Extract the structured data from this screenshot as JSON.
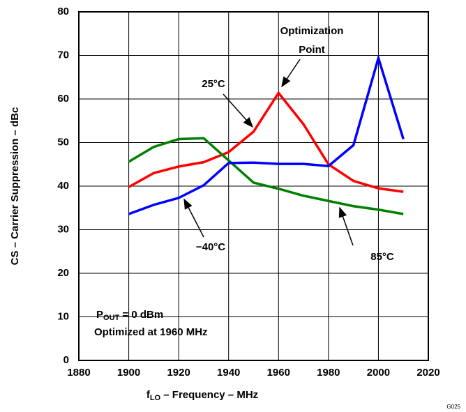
{
  "chart_data": {
    "type": "line",
    "xlabel": {
      "main": "f",
      "sub": "LO",
      "rest": " – Frequency – MHz"
    },
    "ylabel": "CS – Carrier Suppression – dBc",
    "x": [
      1900,
      1910,
      1920,
      1930,
      1940,
      1950,
      1960,
      1970,
      1980,
      1990,
      2000,
      2010
    ],
    "series": [
      {
        "name": "25°C",
        "color": "#ff0000",
        "values": [
          39.8,
          43,
          44.5,
          45.5,
          47.8,
          52.5,
          61.4,
          54.2,
          45,
          41.2,
          39.5,
          38.7
        ]
      },
      {
        "name": "85°C",
        "color": "#008000",
        "values": [
          45.6,
          49,
          50.8,
          51,
          45.9,
          40.8,
          39.4,
          37.8,
          36.6,
          35.4,
          34.6,
          33.6
        ]
      },
      {
        "name": "−40°C",
        "color": "#0000ff",
        "values": [
          33.6,
          35.7,
          37.3,
          40.2,
          45.3,
          45.4,
          45.1,
          45.1,
          44.6,
          49.4,
          69.4,
          50.8
        ]
      }
    ],
    "xlim": [
      1880,
      2020
    ],
    "xticks": [
      1880,
      1900,
      1920,
      1940,
      1960,
      1980,
      2000,
      2020
    ],
    "ylim": [
      0,
      80
    ],
    "yticks": [
      0,
      10,
      20,
      30,
      40,
      50,
      60,
      70,
      80
    ],
    "grid": true,
    "annotations": {
      "opt1": "Optimization",
      "opt2": "Point",
      "note_main": "P",
      "note_sub": "OUT",
      "note_rest": " = 0 dBm",
      "note2": "Optimized at 1960 MHz"
    },
    "figure_id": "G025"
  }
}
